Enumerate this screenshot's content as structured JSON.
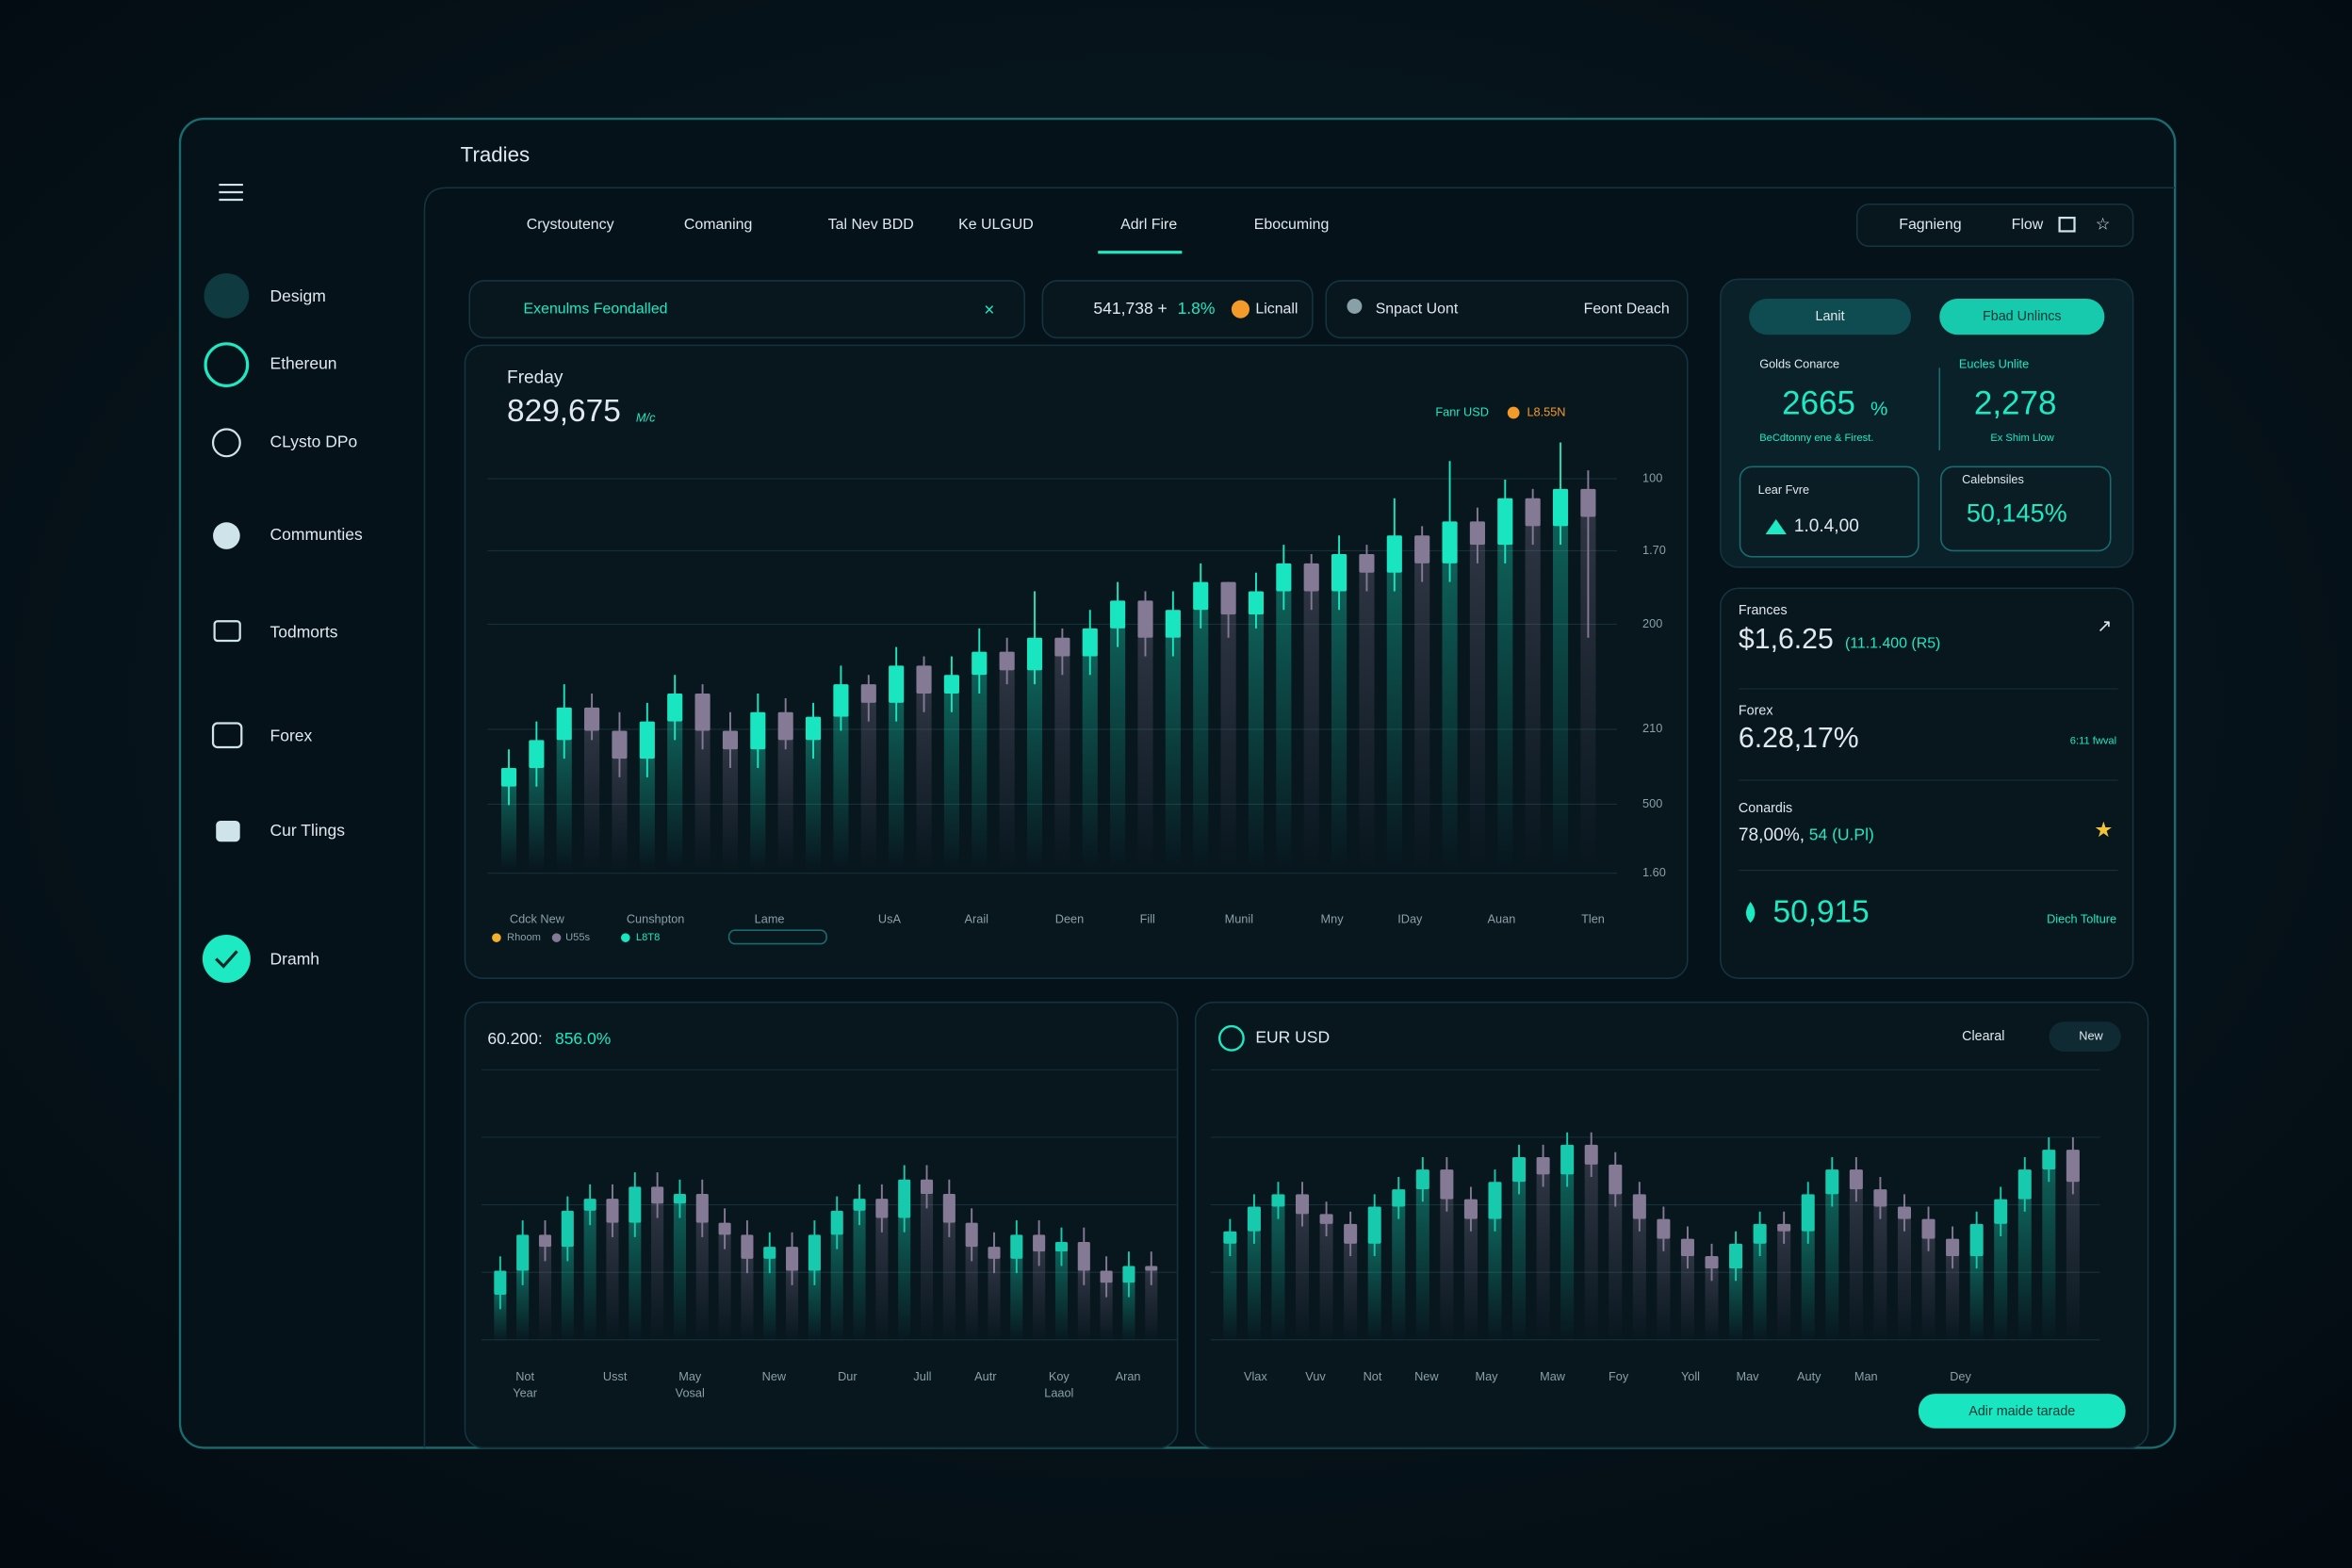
{
  "header": {
    "title": "Tradies"
  },
  "sidebar": {
    "items": [
      "Desigm",
      "Ethereun",
      "CLysto DPo",
      "Communties",
      "Todmorts",
      "Forex",
      "Cur Tlings",
      "Dramh"
    ]
  },
  "tabs": [
    "Crystoutency",
    "Comaning",
    "Tal Nev BDD",
    "Ke ULGUD",
    "Adrl Fire",
    "Ebocuming"
  ],
  "toolbar": {
    "search": "Fagnieng",
    "flow": "Flow"
  },
  "search_bar": {
    "text": "Exenulms Feondalled"
  },
  "ticker": {
    "price": "541,738 +",
    "change": "1.8%",
    "coin": "Licnall"
  },
  "profile": {
    "name": "Snpact Uont",
    "action": "Feont Deach"
  },
  "stats": {
    "buttons": [
      "Lanit",
      "Fbad Unlincs"
    ],
    "gold": {
      "label": "Golds Conarce",
      "value": "2665",
      "unit": "%",
      "note": "BeCdtonny ene & Firest."
    },
    "euclid": {
      "label": "Eucles Unlite",
      "value": "2,278",
      "note": "Ex Shim Llow"
    },
    "lear": {
      "label": "Lear Fvre",
      "value": "1.0.4,00"
    },
    "cal": {
      "label": "Calebnsiles",
      "value": "50,145%"
    }
  },
  "summary": {
    "frances": {
      "label": "Frances",
      "value": "$1,6.25",
      "note": "(11.1.400 (R5)"
    },
    "forex": {
      "label": "Forex",
      "value": "6.28,17%",
      "note": "6:11 fwval"
    },
    "conardis": {
      "label": "Conardis",
      "value": "78,00%,",
      "note": "54 (U.Pl)"
    },
    "total": {
      "value": "50,915",
      "note": "Diech Tolture"
    }
  },
  "bottom_right": {
    "title": "EUR USD",
    "filter": "Clearal",
    "badge": "New",
    "button": "Adir maide tarade"
  },
  "chart_data": [
    {
      "type": "candlestick",
      "subtitle": "Freday",
      "title": "829,675",
      "unit": "M/c",
      "legend": [
        "Fanr USD",
        "L8.55N"
      ],
      "legend_bottom": [
        "Rhoom",
        "U55s",
        "L8T8"
      ],
      "y_labels": [
        "100",
        "1.70",
        "200",
        "210",
        "500",
        "1.60"
      ],
      "x_labels": [
        "Cdck New",
        "Cunshpton",
        "Lame",
        "UsA",
        "Arail",
        "Deen",
        "Fill",
        "Munil",
        "Mny",
        "IDay",
        "Auan",
        "Tlen"
      ],
      "up_color": "#19e6c1",
      "down_color": "#857a96",
      "ylim": [
        0,
        100
      ],
      "open": [
        18,
        22,
        28,
        35,
        30,
        24,
        32,
        38,
        30,
        26,
        34,
        28,
        33,
        40,
        36,
        44,
        38,
        42,
        47,
        43,
        50,
        46,
        52,
        58,
        50,
        56,
        62,
        55,
        60,
        66,
        60,
        68,
        64,
        72,
        66,
        75,
        70,
        80,
        74,
        82
      ],
      "close": [
        22,
        28,
        35,
        30,
        24,
        32,
        38,
        30,
        26,
        34,
        28,
        33,
        40,
        36,
        44,
        38,
        42,
        47,
        43,
        50,
        46,
        52,
        58,
        50,
        56,
        62,
        55,
        60,
        66,
        60,
        68,
        64,
        72,
        66,
        75,
        70,
        80,
        74,
        82,
        76
      ],
      "high": [
        26,
        32,
        40,
        38,
        34,
        36,
        42,
        40,
        34,
        38,
        37,
        36,
        44,
        42,
        48,
        46,
        46,
        52,
        50,
        60,
        52,
        56,
        62,
        60,
        60,
        66,
        62,
        64,
        70,
        68,
        72,
        70,
        80,
        74,
        88,
        78,
        84,
        82,
        92,
        86
      ],
      "low": [
        14,
        18,
        24,
        28,
        20,
        20,
        28,
        26,
        22,
        22,
        26,
        24,
        30,
        32,
        32,
        34,
        34,
        38,
        40,
        40,
        42,
        42,
        48,
        46,
        46,
        52,
        50,
        52,
        56,
        56,
        56,
        60,
        60,
        62,
        62,
        66,
        66,
        70,
        70,
        50
      ]
    },
    {
      "type": "candlestick",
      "title": "60.200:",
      "subtitle": "856.0%",
      "x_labels": [
        [
          "Not",
          "Year"
        ],
        [
          "Usst"
        ],
        [
          "May",
          "Vosal"
        ],
        [
          "New"
        ],
        [
          "Dur"
        ],
        [
          "Jull"
        ],
        [
          "Autr"
        ],
        [
          "Koy",
          "Laaol"
        ],
        [
          "Aran"
        ]
      ],
      "up_color": "#17c9ad",
      "down_color": "#857a96",
      "ylim": [
        0,
        100
      ],
      "open": [
        20,
        30,
        45,
        40,
        55,
        60,
        50,
        65,
        58,
        62,
        50,
        45,
        35,
        40,
        30,
        45,
        55,
        60,
        52,
        68,
        62,
        50,
        40,
        35,
        45,
        38,
        42,
        30,
        25,
        32
      ],
      "close": [
        30,
        45,
        40,
        55,
        60,
        50,
        65,
        58,
        62,
        50,
        45,
        35,
        40,
        30,
        45,
        55,
        60,
        52,
        68,
        62,
        50,
        40,
        35,
        45,
        38,
        42,
        30,
        25,
        32,
        30
      ],
      "high": [
        36,
        51,
        51,
        61,
        66,
        66,
        71,
        71,
        68,
        68,
        56,
        51,
        46,
        46,
        51,
        61,
        66,
        66,
        74,
        74,
        68,
        56,
        46,
        51,
        51,
        48,
        48,
        36,
        38,
        38
      ],
      "low": [
        14,
        24,
        34,
        34,
        49,
        44,
        44,
        52,
        52,
        44,
        39,
        29,
        29,
        24,
        24,
        39,
        49,
        46,
        46,
        56,
        44,
        34,
        29,
        29,
        32,
        32,
        24,
        19,
        19,
        24
      ]
    },
    {
      "type": "candlestick",
      "x_labels": [
        "Vlax",
        "Vuv",
        "Not",
        "New",
        "May",
        "Maw",
        "Foy",
        "Yoll",
        "Mav",
        "Auty",
        "Man",
        "Dey"
      ],
      "up_color": "#17c9ad",
      "down_color": "#857a96",
      "ylim": [
        0,
        100
      ],
      "open": [
        40,
        45,
        55,
        60,
        52,
        48,
        40,
        55,
        62,
        70,
        58,
        50,
        65,
        75,
        68,
        80,
        72,
        60,
        50,
        42,
        35,
        30,
        40,
        48,
        45,
        60,
        70,
        62,
        55,
        50,
        42,
        35,
        48,
        58,
        70,
        78
      ],
      "close": [
        45,
        55,
        60,
        52,
        48,
        40,
        55,
        62,
        70,
        58,
        50,
        65,
        75,
        68,
        80,
        72,
        60,
        50,
        42,
        35,
        30,
        40,
        48,
        45,
        60,
        70,
        62,
        55,
        50,
        42,
        35,
        48,
        58,
        70,
        78,
        65
      ],
      "high": [
        50,
        60,
        65,
        65,
        57,
        53,
        60,
        67,
        75,
        75,
        63,
        70,
        80,
        80,
        85,
        85,
        77,
        65,
        55,
        47,
        40,
        45,
        53,
        53,
        65,
        75,
        75,
        67,
        60,
        55,
        47,
        53,
        63,
        75,
        83,
        83
      ],
      "low": [
        35,
        40,
        50,
        47,
        43,
        35,
        35,
        50,
        57,
        53,
        45,
        45,
        60,
        63,
        63,
        67,
        55,
        45,
        37,
        30,
        25,
        25,
        35,
        40,
        40,
        55,
        57,
        50,
        45,
        37,
        30,
        30,
        43,
        53,
        65,
        60
      ]
    }
  ]
}
